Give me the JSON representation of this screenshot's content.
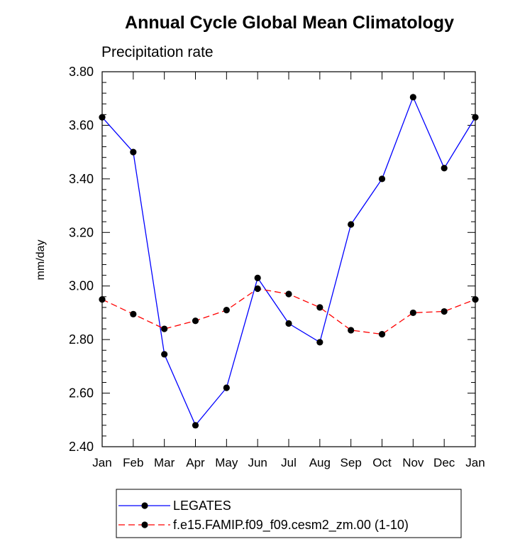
{
  "chart_data": {
    "type": "line",
    "title": "Annual Cycle Global Mean Climatology",
    "subtitle": "Precipitation rate",
    "ylabel": "mm/day",
    "xlabel": "",
    "categories": [
      "Jan",
      "Feb",
      "Mar",
      "Apr",
      "May",
      "Jun",
      "Jul",
      "Aug",
      "Sep",
      "Oct",
      "Nov",
      "Dec",
      "Jan"
    ],
    "ylim": [
      2.4,
      3.8
    ],
    "yticks": [
      "2.40",
      "2.60",
      "2.80",
      "3.00",
      "3.20",
      "3.40",
      "3.60",
      "3.80"
    ],
    "grid": false,
    "legend_position": "bottom",
    "series": [
      {
        "name": "LEGATES",
        "color": "#0000ff",
        "style": "solid",
        "marker": "filled-circle",
        "values": [
          3.63,
          3.5,
          2.745,
          2.48,
          2.62,
          3.03,
          2.86,
          2.79,
          3.23,
          3.4,
          3.705,
          3.44,
          3.63
        ]
      },
      {
        "name": "f.e15.FAMIP.f09_f09.cesm2_zm.00 (1-10)",
        "color": "#ff0000",
        "style": "dashed",
        "marker": "filled-circle",
        "values": [
          2.95,
          2.895,
          2.84,
          2.87,
          2.91,
          2.99,
          2.97,
          2.92,
          2.835,
          2.82,
          2.9,
          2.905,
          2.95
        ]
      }
    ]
  }
}
